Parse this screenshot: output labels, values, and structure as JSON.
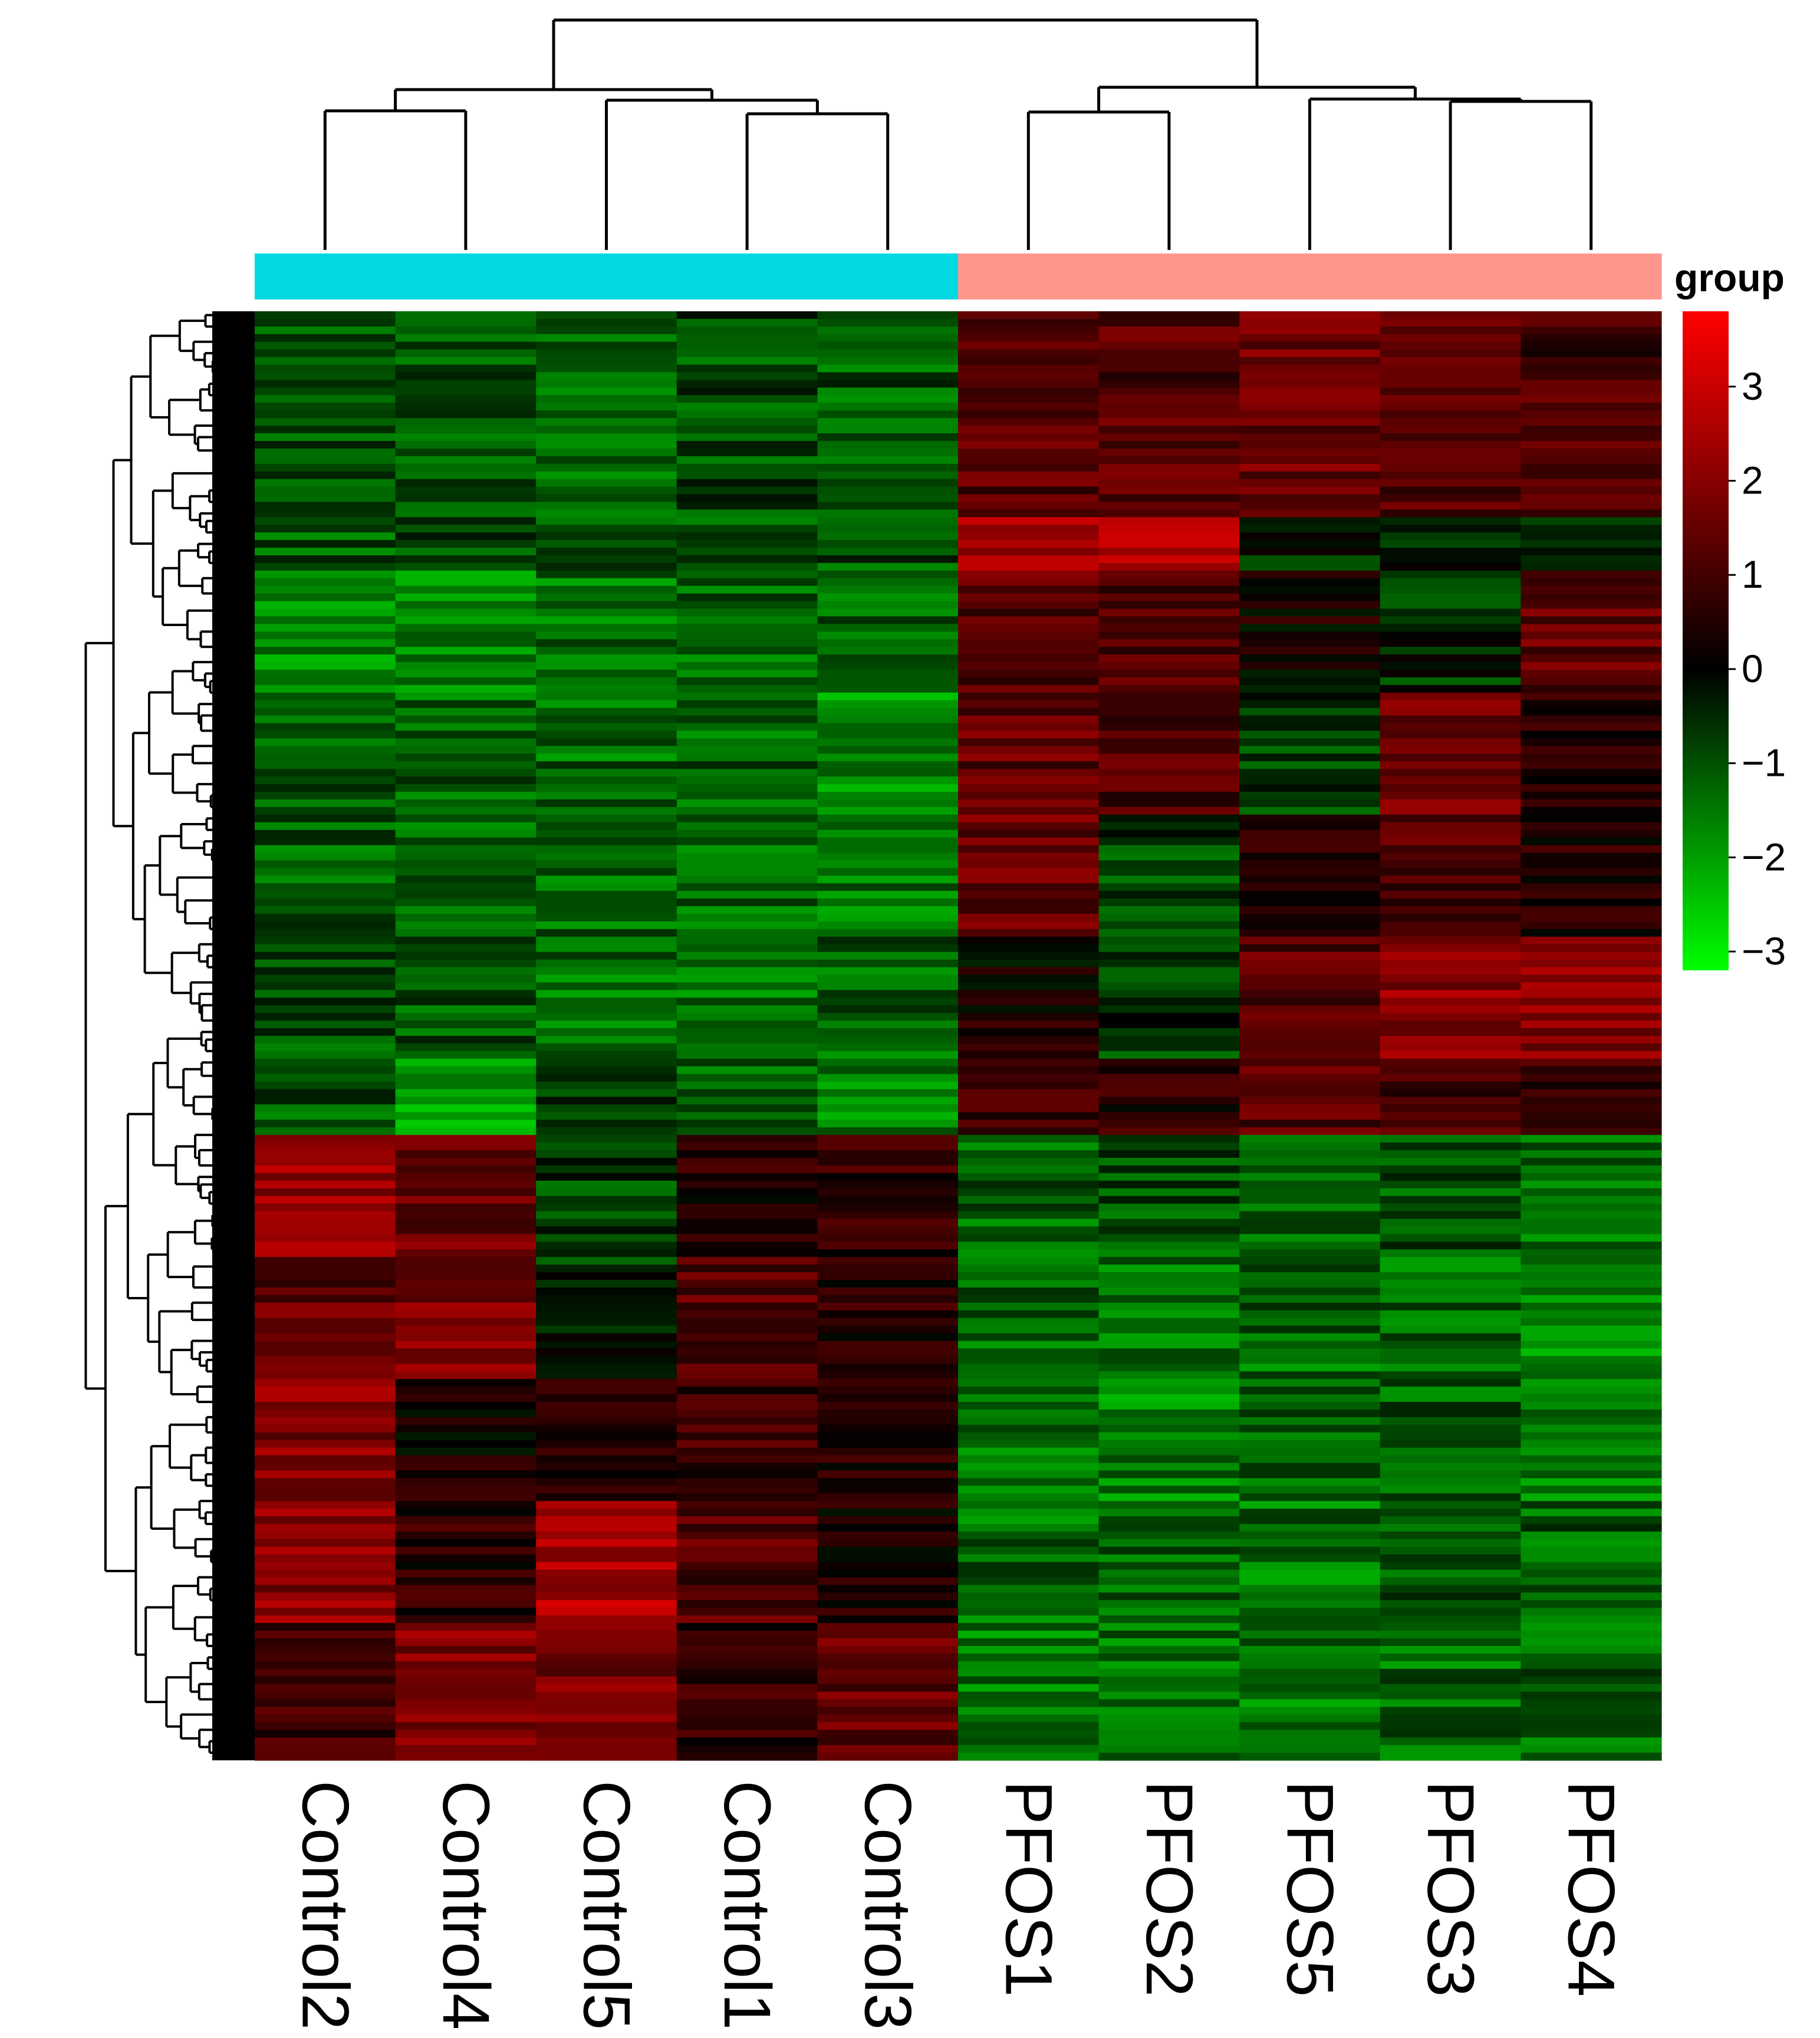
{
  "chart_data": {
    "type": "heatmap",
    "title": "",
    "columns": [
      "Control2",
      "Control4",
      "Control5",
      "Control1",
      "Control3",
      "PFOS1",
      "PFOS2",
      "PFOS5",
      "PFOS3",
      "PFOS4"
    ],
    "column_groups": [
      "Control",
      "Control",
      "Control",
      "Control",
      "Control",
      "PFOS",
      "PFOS",
      "PFOS",
      "PFOS",
      "PFOS"
    ],
    "group_annotation": {
      "title": "group",
      "colors": {
        "Control": "#00d9e1",
        "PFOS": "#ff968c"
      }
    },
    "color_scale": {
      "range": [
        -3.2,
        3.8
      ],
      "ticks": [
        3,
        2,
        1,
        0,
        -1,
        -2,
        -3
      ],
      "tick_labels": [
        "3",
        "2",
        "1",
        "0",
        "−1",
        "−2",
        "−3"
      ],
      "low_color": "#00ff00",
      "mid_color": "#000000",
      "high_color": "#ff0000"
    },
    "row_count": 190,
    "row_blocks": [
      {
        "rows": 27,
        "values": [
          -1.0,
          -1.1,
          -1.2,
          -0.9,
          -1.1,
          1.2,
          1.2,
          1.6,
          1.3,
          1.0
        ]
      },
      {
        "rows": 7,
        "values": [
          -1.1,
          -1.0,
          -1.1,
          -1.0,
          -1.0,
          2.6,
          2.8,
          -0.5,
          -0.6,
          -0.3
        ]
      },
      {
        "rows": 16,
        "values": [
          -1.8,
          -1.6,
          -1.4,
          -1.2,
          -1.2,
          1.3,
          1.1,
          0.3,
          -0.5,
          1.4
        ]
      },
      {
        "rows": 16,
        "values": [
          -1.2,
          -1.2,
          -1.3,
          -1.2,
          -1.8,
          1.4,
          1.1,
          -0.8,
          1.6,
          0.5
        ]
      },
      {
        "rows": 16,
        "values": [
          -1.1,
          -1.3,
          -1.3,
          -1.2,
          -1.4,
          1.5,
          -0.8,
          0.6,
          1.2,
          0.6
        ]
      },
      {
        "rows": 16,
        "values": [
          -1.0,
          -1.1,
          -1.3,
          -1.4,
          -1.2,
          0.3,
          -0.7,
          1.3,
          2.0,
          2.0
        ]
      },
      {
        "rows": 10,
        "values": [
          -1.0,
          -1.9,
          -0.5,
          -1.2,
          -1.6,
          0.9,
          0.6,
          1.2,
          1.0,
          1.0
        ]
      },
      {
        "rows": 16,
        "values": [
          2.2,
          1.6,
          -0.8,
          0.6,
          0.7,
          -1.2,
          -1.0,
          -1.4,
          -1.0,
          -1.3
        ]
      },
      {
        "rows": 16,
        "values": [
          1.4,
          1.9,
          -0.6,
          1.3,
          0.5,
          -1.3,
          -1.4,
          -1.3,
          -1.3,
          -1.6
        ]
      },
      {
        "rows": 16,
        "values": [
          1.9,
          0.4,
          0.6,
          0.9,
          0.4,
          -1.4,
          -1.6,
          -1.2,
          -1.2,
          -1.5
        ]
      },
      {
        "rows": 16,
        "values": [
          2.0,
          0.6,
          2.5,
          1.2,
          0.3,
          -1.3,
          -1.3,
          -1.4,
          -1.1,
          -1.2
        ]
      },
      {
        "rows": 18,
        "values": [
          1.0,
          1.9,
          1.8,
          0.7,
          1.5,
          -1.5,
          -1.4,
          -1.5,
          -1.3,
          -1.2
        ]
      }
    ]
  }
}
